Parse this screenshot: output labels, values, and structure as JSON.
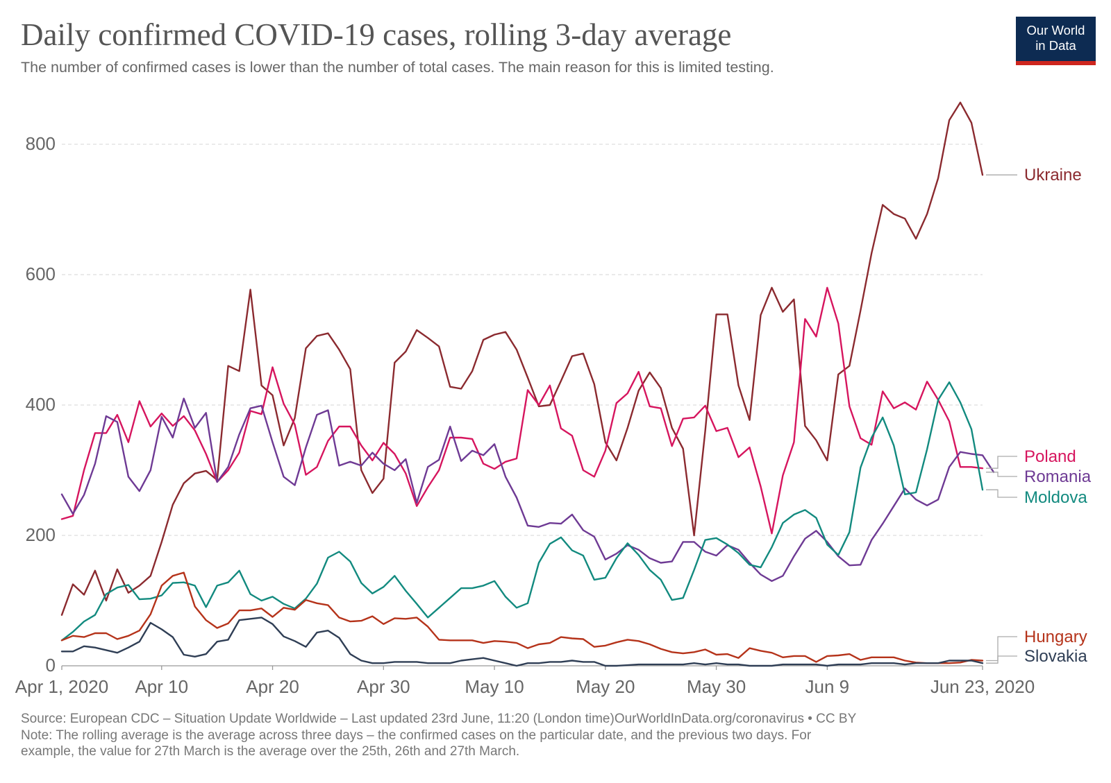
{
  "header": {
    "title": "Daily confirmed COVID-19 cases, rolling 3-day average",
    "subtitle": "The number of confirmed cases is lower than the number of total cases. The main reason for this is limited testing."
  },
  "logo": {
    "line1": "Our World",
    "line2": "in Data",
    "bg_color": "#0d2b52",
    "accent_color": "#ce261e"
  },
  "footer": {
    "source": "Source: European CDC – Situation Update Worldwide – Last updated 23rd June, 11:20 (London time)OurWorldInData.org/coronavirus • CC BY",
    "note_line1": "Note: The rolling average is the average across three days – the confirmed cases on the particular date, and the previous two days. For",
    "note_line2": "example, the value for 27th March is the average over the 25th, 26th and 27th March."
  },
  "chart_data": {
    "type": "line",
    "title": "Daily confirmed COVID-19 cases, rolling 3-day average",
    "x_start": "Apr 1, 2020",
    "x_end": "Jun 23, 2020",
    "x_tick_labels": [
      "Apr 1, 2020",
      "Apr 10",
      "Apr 20",
      "Apr 30",
      "May 10",
      "May 20",
      "May 30",
      "Jun 9",
      "Jun 23, 2020"
    ],
    "y_ticks": [
      0,
      200,
      400,
      600,
      800
    ],
    "ylim": [
      0,
      870
    ],
    "grid": "horizontal dashed",
    "legend": "labels at right end of lines",
    "series": [
      {
        "name": "Ukraine",
        "color": "#8b2a2f",
        "values": [
          78,
          125,
          109,
          146,
          100,
          148,
          112,
          123,
          138,
          190,
          247,
          280,
          295,
          299,
          285,
          460,
          452,
          577,
          430,
          415,
          338,
          380,
          487,
          506,
          510,
          485,
          455,
          300,
          265,
          287,
          465,
          482,
          515,
          503,
          490,
          428,
          425,
          452,
          500,
          508,
          512,
          485,
          442,
          398,
          400,
          437,
          475,
          479,
          432,
          343,
          315,
          365,
          422,
          450,
          426,
          365,
          333,
          200,
          360,
          539,
          539,
          430,
          377,
          538,
          580,
          543,
          562,
          368,
          346,
          315,
          447,
          460,
          545,
          633,
          707,
          693,
          686,
          655,
          693,
          748,
          837,
          864,
          833,
          753
        ]
      },
      {
        "name": "Poland",
        "color": "#d6155e",
        "values": [
          225,
          230,
          300,
          357,
          357,
          385,
          343,
          406,
          367,
          387,
          368,
          383,
          361,
          325,
          282,
          300,
          327,
          391,
          386,
          458,
          402,
          370,
          293,
          305,
          345,
          367,
          367,
          338,
          315,
          342,
          325,
          295,
          245,
          274,
          300,
          350,
          350,
          348,
          310,
          302,
          313,
          318,
          423,
          400,
          430,
          364,
          353,
          300,
          290,
          330,
          403,
          418,
          451,
          398,
          395,
          337,
          379,
          381,
          399,
          360,
          365,
          320,
          335,
          275,
          203,
          292,
          343,
          532,
          505,
          580,
          525,
          398,
          349,
          339,
          421,
          395,
          404,
          393,
          436,
          408,
          375,
          305,
          305,
          303
        ]
      },
      {
        "name": "Romania",
        "color": "#6e3a94",
        "values": [
          263,
          233,
          262,
          310,
          383,
          374,
          290,
          268,
          300,
          382,
          350,
          410,
          365,
          388,
          282,
          305,
          355,
          395,
          399,
          343,
          290,
          277,
          335,
          385,
          392,
          307,
          313,
          307,
          327,
          310,
          300,
          317,
          250,
          305,
          316,
          367,
          314,
          330,
          323,
          340,
          290,
          258,
          215,
          213,
          219,
          218,
          232,
          208,
          198,
          163,
          172,
          185,
          178,
          165,
          158,
          160,
          190,
          190,
          175,
          169,
          185,
          178,
          158,
          140,
          130,
          138,
          168,
          195,
          207,
          190,
          168,
          154,
          155,
          193,
          218,
          245,
          272,
          255,
          246,
          255,
          305,
          328,
          325,
          323,
          297
        ]
      },
      {
        "name": "Moldova",
        "color": "#128a7f",
        "values": [
          39,
          52,
          68,
          78,
          110,
          120,
          124,
          102,
          103,
          108,
          127,
          128,
          123,
          90,
          123,
          128,
          146,
          110,
          100,
          106,
          95,
          88,
          103,
          126,
          166,
          175,
          160,
          127,
          111,
          121,
          138,
          115,
          95,
          74,
          89,
          104,
          119,
          119,
          123,
          130,
          106,
          89,
          96,
          158,
          187,
          197,
          177,
          169,
          132,
          135,
          165,
          188,
          170,
          147,
          132,
          101,
          104,
          147,
          193,
          196,
          186,
          173,
          155,
          151,
          182,
          219,
          232,
          239,
          227,
          186,
          170,
          205,
          304,
          350,
          381,
          338,
          263,
          266,
          332,
          408,
          435,
          404,
          363,
          270
        ]
      },
      {
        "name": "Hungary",
        "color": "#b5331a",
        "values": [
          39,
          46,
          44,
          50,
          50,
          41,
          46,
          54,
          79,
          123,
          138,
          143,
          91,
          70,
          58,
          65,
          85,
          85,
          88,
          75,
          89,
          86,
          101,
          96,
          93,
          74,
          68,
          69,
          76,
          64,
          73,
          72,
          74,
          60,
          40,
          39,
          39,
          39,
          35,
          38,
          37,
          35,
          27,
          33,
          35,
          44,
          42,
          41,
          29,
          31,
          36,
          40,
          38,
          33,
          26,
          21,
          19,
          21,
          25,
          17,
          18,
          12,
          27,
          23,
          20,
          13,
          15,
          15,
          6,
          15,
          16,
          18,
          9,
          13,
          13,
          13,
          8,
          5,
          4,
          4,
          4,
          5,
          9,
          8
        ]
      },
      {
        "name": "Slovakia",
        "color": "#2f3e55",
        "values": [
          22,
          22,
          30,
          28,
          24,
          20,
          28,
          37,
          66,
          56,
          44,
          17,
          14,
          18,
          37,
          40,
          70,
          72,
          74,
          64,
          45,
          38,
          29,
          51,
          54,
          43,
          18,
          8,
          4,
          4,
          6,
          6,
          6,
          4,
          4,
          4,
          8,
          10,
          12,
          8,
          4,
          0,
          4,
          4,
          6,
          6,
          8,
          6,
          6,
          0,
          0,
          1,
          2,
          2,
          2,
          2,
          2,
          4,
          2,
          4,
          2,
          2,
          0,
          0,
          0,
          2,
          2,
          2,
          2,
          0,
          2,
          2,
          2,
          4,
          4,
          4,
          2,
          4,
          4,
          4,
          8,
          8,
          8,
          4
        ]
      }
    ]
  }
}
